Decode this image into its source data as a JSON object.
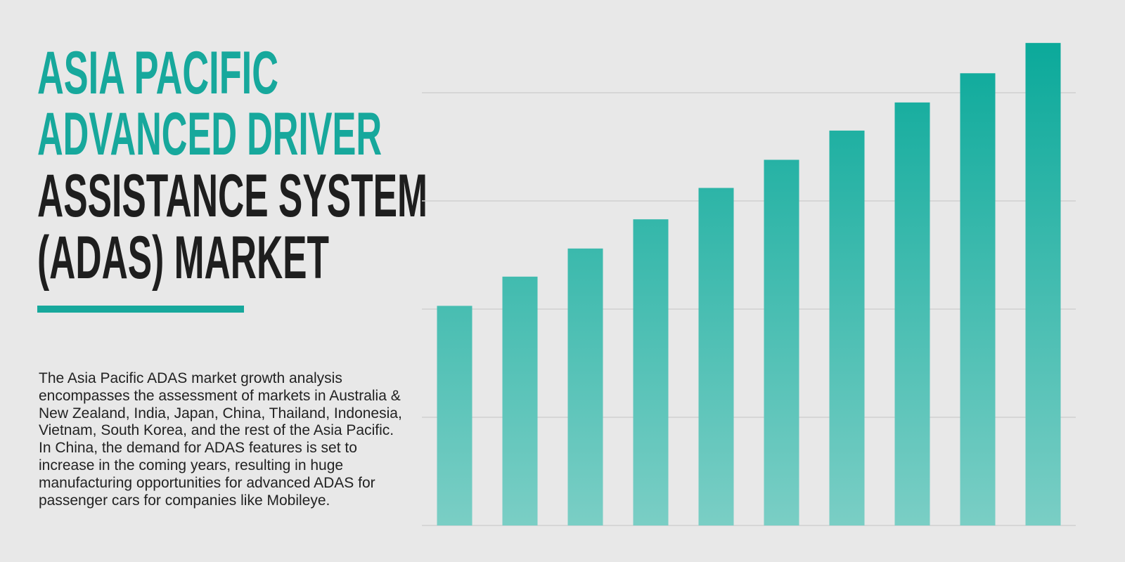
{
  "chart_data": {
    "type": "bar",
    "title_highlight": [
      "ASIA PACIFIC",
      "ADVANCED DRIVER"
    ],
    "title": [
      "ASSISTANCE SYSTEM",
      "(ADAS) MARKET"
    ],
    "description": "The Asia Pacific ADAS market growth analysis encompasses the assessment of markets in Australia & New Zealand, India, Japan, China, Thailand, Indonesia, Vietnam, South Korea, and the rest of the Asia Pacific. In China, the demand for ADAS features is set to increase in the coming years, resulting in huge manufacturing opportunities for advanced ADAS for passenger cars for companies like Mobileye.",
    "categories": [
      null,
      null,
      null,
      null,
      null,
      null,
      null,
      null,
      null,
      null
    ],
    "values": [
      2.03,
      2.3,
      2.56,
      2.83,
      3.12,
      3.38,
      3.65,
      3.91,
      4.18,
      4.46
    ],
    "color": "#0aa99a",
    "ylim": [
      0,
      4.5
    ],
    "gridlines": [
      0,
      1,
      2,
      3,
      4
    ],
    "grid": true
  }
}
